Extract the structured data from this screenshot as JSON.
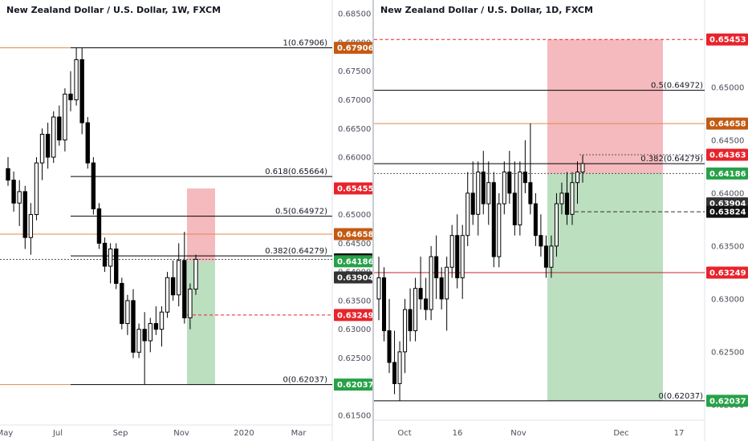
{
  "chart_data": [
    {
      "type": "candlestick",
      "title": "New Zealand Dollar / U.S. Dollar, 1W, FXCM",
      "x_labels": [
        "May",
        "Jul",
        "Sep",
        "Nov",
        "2020",
        "Mar"
      ],
      "y_ticks": [
        "0.68500",
        "0.68000",
        "0.67500",
        "0.67000",
        "0.66500",
        "0.66000",
        "0.65500",
        "0.65000",
        "0.64500",
        "0.64000",
        "0.63500",
        "0.63000",
        "0.62500",
        "0.62000",
        "0.61500"
      ],
      "ylim": [
        0.615,
        0.686
      ],
      "fib_levels": [
        {
          "label": "1(0.67906)",
          "value": 0.67906
        },
        {
          "label": "0.618(0.65664)",
          "value": 0.65664
        },
        {
          "label": "0.5(0.64972)",
          "value": 0.64972
        },
        {
          "label": "0.382(0.64279)",
          "value": 0.64279
        },
        {
          "label": "0(0.62037)",
          "value": 0.62037
        }
      ],
      "price_badges": [
        {
          "text": "0.67906",
          "value": 0.67906,
          "color": "#c35a12"
        },
        {
          "text": "0.65455",
          "value": 0.65455,
          "color": "#e8232b"
        },
        {
          "text": "0.64658",
          "value": 0.64658,
          "color": "#c35a12"
        },
        {
          "text": "0.64219",
          "value": 0.64219,
          "color": "#111111"
        },
        {
          "text": "0.64186",
          "value": 0.64186,
          "color": "#27a147"
        },
        {
          "text": "0.63904",
          "value": 0.63904,
          "color": "#333333"
        },
        {
          "text": "0.63249",
          "value": 0.63249,
          "color": "#e8232b"
        },
        {
          "text": "0.62037",
          "value": 0.62037,
          "color": "#27a147"
        }
      ],
      "position": {
        "entry": 0.64186,
        "stop": 0.65455,
        "target": 0.62037
      },
      "candles": [
        [
          0.658,
          0.66,
          0.655,
          0.656
        ],
        [
          0.656,
          0.6575,
          0.6505,
          0.652
        ],
        [
          0.652,
          0.656,
          0.648,
          0.654
        ],
        [
          0.654,
          0.655,
          0.644,
          0.646
        ],
        [
          0.646,
          0.652,
          0.643,
          0.65
        ],
        [
          0.65,
          0.66,
          0.649,
          0.659
        ],
        [
          0.659,
          0.665,
          0.656,
          0.664
        ],
        [
          0.664,
          0.666,
          0.658,
          0.66
        ],
        [
          0.66,
          0.668,
          0.659,
          0.667
        ],
        [
          0.667,
          0.669,
          0.662,
          0.663
        ],
        [
          0.663,
          0.672,
          0.661,
          0.671
        ],
        [
          0.671,
          0.675,
          0.668,
          0.67
        ],
        [
          0.67,
          0.679,
          0.669,
          0.677
        ],
        [
          0.677,
          0.6791,
          0.664,
          0.666
        ],
        [
          0.666,
          0.667,
          0.658,
          0.659
        ],
        [
          0.659,
          0.66,
          0.65,
          0.651
        ],
        [
          0.651,
          0.652,
          0.644,
          0.645
        ],
        [
          0.645,
          0.646,
          0.64,
          0.641
        ],
        [
          0.641,
          0.645,
          0.638,
          0.644
        ],
        [
          0.644,
          0.645,
          0.637,
          0.638
        ],
        [
          0.638,
          0.639,
          0.63,
          0.631
        ],
        [
          0.631,
          0.636,
          0.629,
          0.635
        ],
        [
          0.635,
          0.637,
          0.625,
          0.626
        ],
        [
          0.626,
          0.631,
          0.625,
          0.63
        ],
        [
          0.63,
          0.633,
          0.6204,
          0.628
        ],
        [
          0.628,
          0.632,
          0.626,
          0.631
        ],
        [
          0.631,
          0.634,
          0.629,
          0.63
        ],
        [
          0.63,
          0.634,
          0.627,
          0.633
        ],
        [
          0.633,
          0.64,
          0.632,
          0.639
        ],
        [
          0.639,
          0.642,
          0.635,
          0.636
        ],
        [
          0.636,
          0.645,
          0.634,
          0.642
        ],
        [
          0.642,
          0.647,
          0.631,
          0.632
        ],
        [
          0.632,
          0.638,
          0.63,
          0.637
        ],
        [
          0.637,
          0.643,
          0.636,
          0.6422
        ]
      ]
    },
    {
      "type": "candlestick",
      "title": "New Zealand Dollar / U.S. Dollar, 1D, FXCM",
      "x_labels": [
        "Oct",
        "16",
        "Nov",
        "Dec",
        "17"
      ],
      "y_ticks": [
        "0.65000",
        "0.64500",
        "0.64000",
        "0.63500",
        "0.63000",
        "0.62500",
        "0.62000"
      ],
      "ylim": [
        0.619,
        0.6575
      ],
      "fib_levels": [
        {
          "label": "0.5(0.64972)",
          "value": 0.64972
        },
        {
          "label": "0.382(0.64279)",
          "value": 0.64279
        },
        {
          "label": "0(0.62037)",
          "value": 0.62037
        }
      ],
      "price_badges": [
        {
          "text": "0.65453",
          "value": 0.65453,
          "color": "#e8232b"
        },
        {
          "text": "0.64658",
          "value": 0.64658,
          "color": "#c35a12"
        },
        {
          "text": "0.64363",
          "value": 0.64363,
          "color": "#e8232b"
        },
        {
          "text": "0.64186",
          "value": 0.64186,
          "color": "#27a147"
        },
        {
          "text": "0.63904",
          "value": 0.63904,
          "color": "#333333"
        },
        {
          "text": "0.63824",
          "value": 0.63824,
          "color": "#111111"
        },
        {
          "text": "0.63249",
          "value": 0.63249,
          "color": "#e8232b"
        },
        {
          "text": "0.62037",
          "value": 0.62037,
          "color": "#27a147"
        }
      ],
      "position": {
        "entry": 0.64186,
        "stop": 0.65453,
        "target": 0.62037
      },
      "candles": [
        [
          0.63,
          0.634,
          0.628,
          0.632
        ],
        [
          0.632,
          0.633,
          0.626,
          0.627
        ],
        [
          0.627,
          0.63,
          0.623,
          0.624
        ],
        [
          0.624,
          0.627,
          0.621,
          0.622
        ],
        [
          0.622,
          0.626,
          0.6204,
          0.625
        ],
        [
          0.625,
          0.63,
          0.623,
          0.629
        ],
        [
          0.629,
          0.631,
          0.626,
          0.627
        ],
        [
          0.627,
          0.632,
          0.626,
          0.631
        ],
        [
          0.631,
          0.634,
          0.629,
          0.63
        ],
        [
          0.63,
          0.632,
          0.628,
          0.629
        ],
        [
          0.629,
          0.635,
          0.628,
          0.634
        ],
        [
          0.634,
          0.636,
          0.63,
          0.632
        ],
        [
          0.632,
          0.633,
          0.629,
          0.63
        ],
        [
          0.63,
          0.634,
          0.627,
          0.633
        ],
        [
          0.633,
          0.637,
          0.632,
          0.636
        ],
        [
          0.636,
          0.638,
          0.631,
          0.632
        ],
        [
          0.632,
          0.637,
          0.63,
          0.636
        ],
        [
          0.636,
          0.642,
          0.635,
          0.64
        ],
        [
          0.64,
          0.643,
          0.637,
          0.638
        ],
        [
          0.638,
          0.643,
          0.636,
          0.642
        ],
        [
          0.642,
          0.644,
          0.638,
          0.639
        ],
        [
          0.639,
          0.643,
          0.637,
          0.641
        ],
        [
          0.641,
          0.642,
          0.633,
          0.634
        ],
        [
          0.634,
          0.64,
          0.633,
          0.639
        ],
        [
          0.639,
          0.643,
          0.638,
          0.642
        ],
        [
          0.642,
          0.644,
          0.639,
          0.64
        ],
        [
          0.64,
          0.643,
          0.636,
          0.637
        ],
        [
          0.637,
          0.643,
          0.636,
          0.642
        ],
        [
          0.642,
          0.645,
          0.64,
          0.641
        ],
        [
          0.641,
          0.6466,
          0.638,
          0.639
        ],
        [
          0.639,
          0.64,
          0.635,
          0.636
        ],
        [
          0.636,
          0.638,
          0.634,
          0.635
        ],
        [
          0.635,
          0.636,
          0.632,
          0.633
        ],
        [
          0.633,
          0.636,
          0.632,
          0.635
        ],
        [
          0.635,
          0.64,
          0.634,
          0.639
        ],
        [
          0.639,
          0.641,
          0.638,
          0.64
        ],
        [
          0.64,
          0.642,
          0.637,
          0.638
        ],
        [
          0.638,
          0.642,
          0.637,
          0.641
        ],
        [
          0.641,
          0.643,
          0.639,
          0.642
        ],
        [
          0.642,
          0.6436,
          0.641,
          0.6428
        ]
      ]
    }
  ]
}
